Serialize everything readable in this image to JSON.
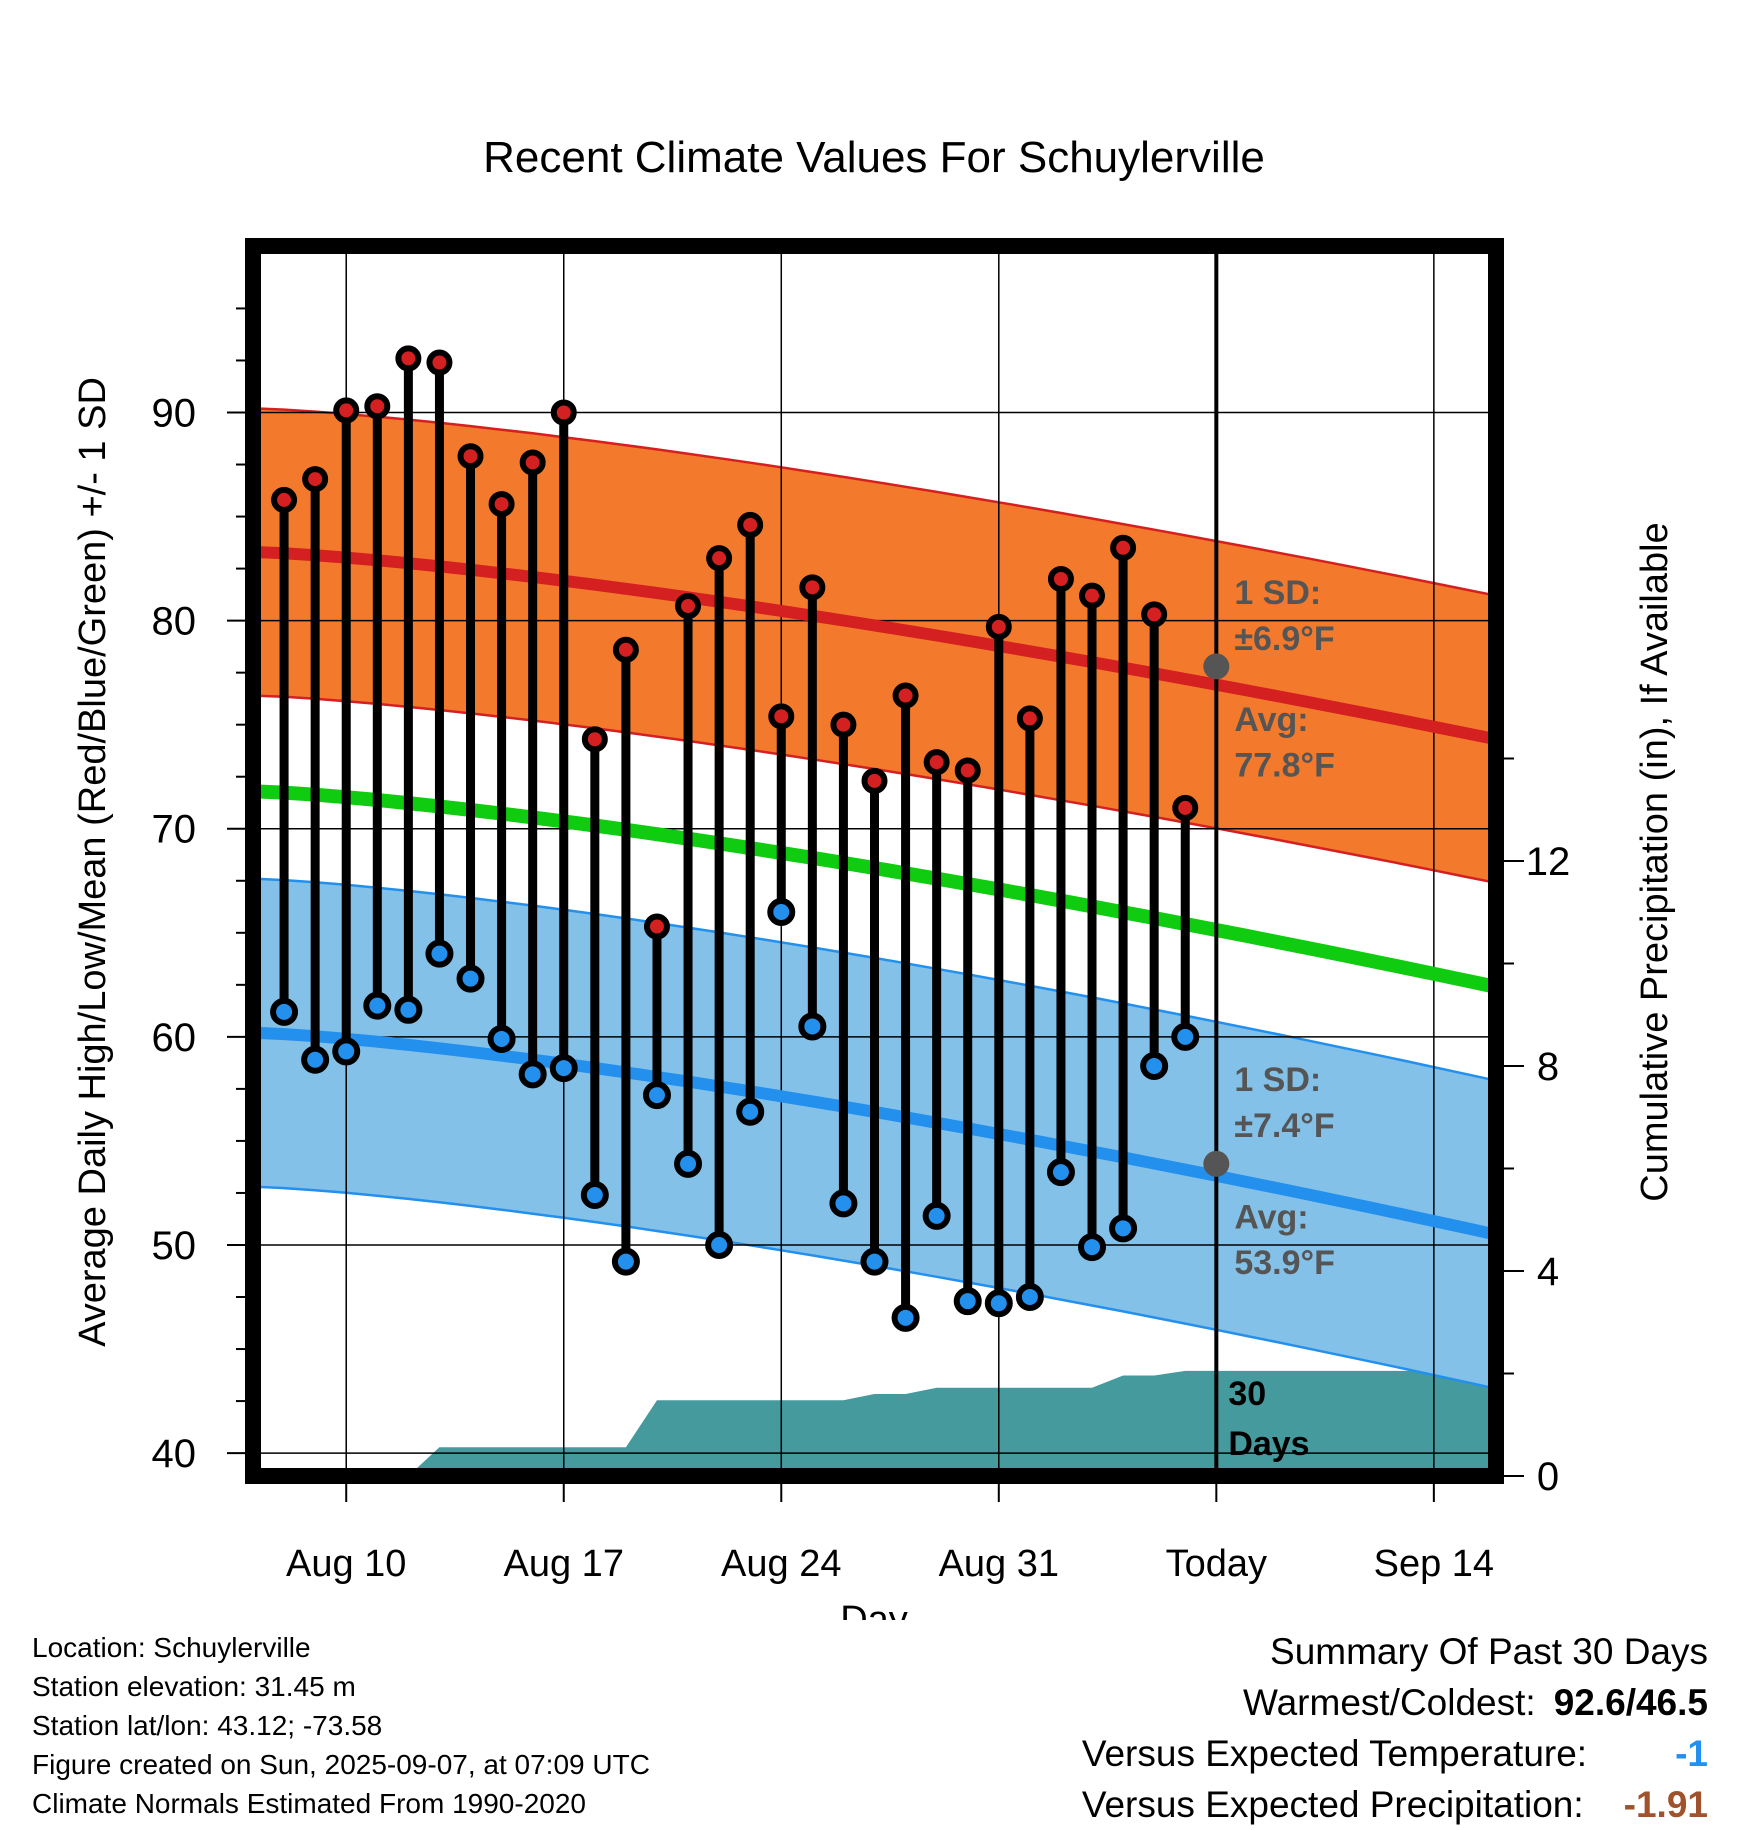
{
  "chart_data": {
    "type": "line",
    "title": "Recent Climate Values For Schuylerville",
    "xlabel": "Day",
    "ylabel": "Average Daily High/Low/Mean (Red/Blue/Green) +/- 1 SD",
    "y2label": "Cumulative Precipitation (in), If Available",
    "ylim": [
      38.9,
      98
    ],
    "y2lim": [
      0,
      24
    ],
    "xlim": [
      "2025-08-07",
      "2025-09-16"
    ],
    "x_ticks": [
      {
        "date": "2025-08-10",
        "label": "Aug 10"
      },
      {
        "date": "2025-08-17",
        "label": "Aug 17"
      },
      {
        "date": "2025-08-24",
        "label": "Aug 24"
      },
      {
        "date": "2025-08-31",
        "label": "Aug 31"
      },
      {
        "date": "2025-09-07",
        "label": "Today"
      },
      {
        "date": "2025-09-14",
        "label": "Sep 14"
      }
    ],
    "y_ticks": [
      40,
      50,
      60,
      70,
      80,
      90
    ],
    "y2_ticks": [
      0,
      4,
      8,
      12
    ],
    "today": "2025-09-07",
    "dates": [
      "2025-08-08",
      "2025-08-09",
      "2025-08-10",
      "2025-08-11",
      "2025-08-12",
      "2025-08-13",
      "2025-08-14",
      "2025-08-15",
      "2025-08-16",
      "2025-08-17",
      "2025-08-18",
      "2025-08-19",
      "2025-08-20",
      "2025-08-21",
      "2025-08-22",
      "2025-08-23",
      "2025-08-24",
      "2025-08-25",
      "2025-08-26",
      "2025-08-27",
      "2025-08-28",
      "2025-08-29",
      "2025-08-30",
      "2025-08-31",
      "2025-09-01",
      "2025-09-02",
      "2025-09-03",
      "2025-09-04",
      "2025-09-05",
      "2025-09-06"
    ],
    "series": [
      {
        "name": "Daily High",
        "color": "#d42020",
        "values": [
          85.8,
          86.8,
          90.1,
          90.3,
          92.6,
          92.4,
          87.9,
          85.6,
          87.6,
          90.0,
          74.3,
          78.6,
          65.3,
          80.7,
          83.0,
          84.6,
          75.4,
          81.6,
          75.0,
          72.3,
          76.4,
          73.2,
          72.8,
          79.7,
          75.3,
          82.0,
          81.2,
          83.5,
          80.3,
          71.0
        ]
      },
      {
        "name": "Daily Low",
        "color": "#2390ee",
        "values": [
          61.2,
          58.9,
          59.3,
          61.5,
          61.3,
          64.0,
          62.8,
          59.9,
          58.2,
          58.5,
          52.4,
          49.2,
          57.2,
          53.9,
          50.0,
          56.4,
          66.0,
          60.5,
          52.0,
          49.2,
          46.5,
          51.4,
          47.3,
          47.2,
          47.5,
          53.5,
          49.9,
          50.8,
          58.6,
          60.0
        ]
      }
    ],
    "normals": {
      "dates": [
        "2025-08-07",
        "2025-09-16"
      ],
      "high_avg": [
        83.3,
        74.3
      ],
      "high_sd": 6.9,
      "low_avg": [
        60.2,
        50.5
      ],
      "low_sd": 7.4,
      "mean_avg": [
        71.8,
        62.4
      ],
      "high_color": "#f37a2c",
      "low_color": "#84c1e8",
      "mean_color": "#10cc10"
    },
    "precip_cumulative": {
      "color": "#459a9e",
      "dates": [
        "2025-08-12",
        "2025-08-13",
        "2025-08-19",
        "2025-08-20",
        "2025-08-26",
        "2025-08-27",
        "2025-08-28",
        "2025-08-29",
        "2025-09-03",
        "2025-09-04",
        "2025-09-05",
        "2025-09-06",
        "2025-09-16"
      ],
      "values": [
        0,
        0.56,
        0.56,
        1.48,
        1.48,
        1.6,
        1.6,
        1.72,
        1.72,
        1.96,
        1.96,
        2.05,
        2.05
      ]
    },
    "annotations": {
      "high_sd_label": "1 SD:",
      "high_sd_value": "±6.9°F",
      "high_avg_label": "Avg:",
      "high_avg_value": "77.8°F",
      "low_sd_label": "1 SD:",
      "low_sd_value": "±7.4°F",
      "low_avg_label": "Avg:",
      "low_avg_value": "53.9°F",
      "today_high_avg": 77.8,
      "today_low_avg": 53.9,
      "days_label_1": "30",
      "days_label_2": "Days"
    }
  },
  "footer": {
    "location": "Location: Schuylerville",
    "elevation": "Station elevation: 31.45 m",
    "latlon": "Station lat/lon: 43.12; -73.58",
    "created": "Figure created on Sun, 2025-09-07, at 07:09 UTC",
    "normals_period": "Climate Normals Estimated From 1990-2020"
  },
  "summary": {
    "title": "Summary Of Past 30 Days",
    "warm_cold_label": "Warmest/Coldest:",
    "warm_cold_value": "92.6/46.5",
    "temp_label": "Versus Expected Temperature:",
    "temp_value": "-1",
    "temp_color": "#2390ee",
    "precip_label": "Versus Expected Precipitation:",
    "precip_value": "-1.91",
    "precip_color": "#a0522d"
  }
}
